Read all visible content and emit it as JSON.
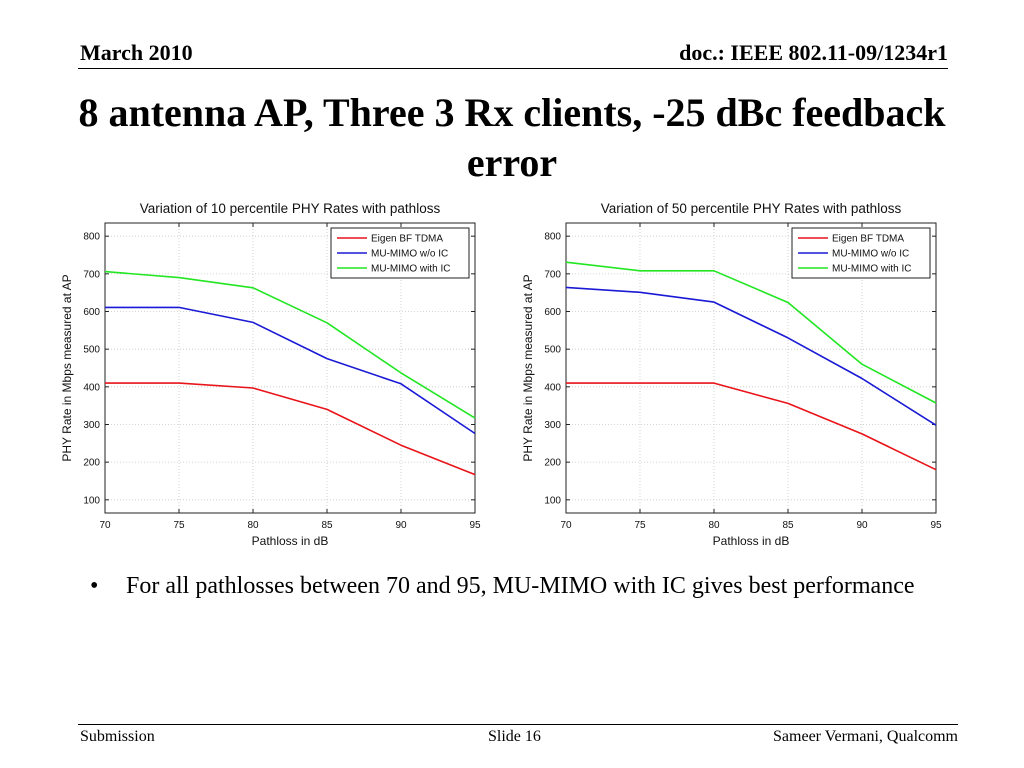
{
  "header": {
    "date": "March 2010",
    "doc_id": "doc.: IEEE 802.11-09/1234r1"
  },
  "slide_title": "8 antenna AP, Three 3 Rx clients, -25 dBc feedback error",
  "bullet": {
    "symbol": "•",
    "text": "For all pathlosses between 70 and 95, MU-MIMO with IC gives best performance"
  },
  "footer": {
    "left": "Submission",
    "center": "Slide 16",
    "right": "Sameer Vermani, Qualcomm"
  },
  "chart_data": [
    {
      "type": "line",
      "title": "Variation of 10 percentile PHY Rates with pathloss",
      "xlabel": "Pathloss in dB",
      "ylabel": "PHY Rate in Mbps measured at AP",
      "x": [
        70,
        75,
        80,
        85,
        90,
        95
      ],
      "xlim": [
        70,
        95
      ],
      "ylim": [
        65,
        835
      ],
      "xticks": [
        70,
        75,
        80,
        85,
        90,
        95
      ],
      "yticks": [
        100,
        200,
        300,
        400,
        500,
        600,
        700,
        800
      ],
      "grid": true,
      "legend_position": "top-right",
      "series": [
        {
          "name": "Eigen BF TDMA",
          "color": "#e8141a",
          "values": [
            410,
            410,
            397,
            340,
            245,
            167
          ]
        },
        {
          "name": "MU-MIMO w/o IC",
          "color": "#1a1ad6",
          "values": [
            611,
            611,
            571,
            475,
            408,
            276
          ]
        },
        {
          "name": "MU-MIMO with IC",
          "color": "#22e622",
          "values": [
            706,
            690,
            663,
            570,
            437,
            317
          ]
        }
      ]
    },
    {
      "type": "line",
      "title": "Variation of 50 percentile PHY Rates with pathloss",
      "xlabel": "Pathloss in dB",
      "ylabel": "PHY Rate in Mbps measured at AP",
      "x": [
        70,
        75,
        80,
        85,
        90,
        95
      ],
      "xlim": [
        70,
        95
      ],
      "ylim": [
        65,
        835
      ],
      "xticks": [
        70,
        75,
        80,
        85,
        90,
        95
      ],
      "yticks": [
        100,
        200,
        300,
        400,
        500,
        600,
        700,
        800
      ],
      "grid": true,
      "legend_position": "top-right",
      "series": [
        {
          "name": "Eigen BF TDMA",
          "color": "#e8141a",
          "values": [
            410,
            410,
            410,
            356,
            275,
            180
          ]
        },
        {
          "name": "MU-MIMO w/o IC",
          "color": "#1a1ad6",
          "values": [
            664,
            651,
            625,
            530,
            422,
            298
          ]
        },
        {
          "name": "MU-MIMO with IC",
          "color": "#22e622",
          "values": [
            731,
            708,
            708,
            624,
            460,
            357
          ]
        }
      ]
    }
  ]
}
